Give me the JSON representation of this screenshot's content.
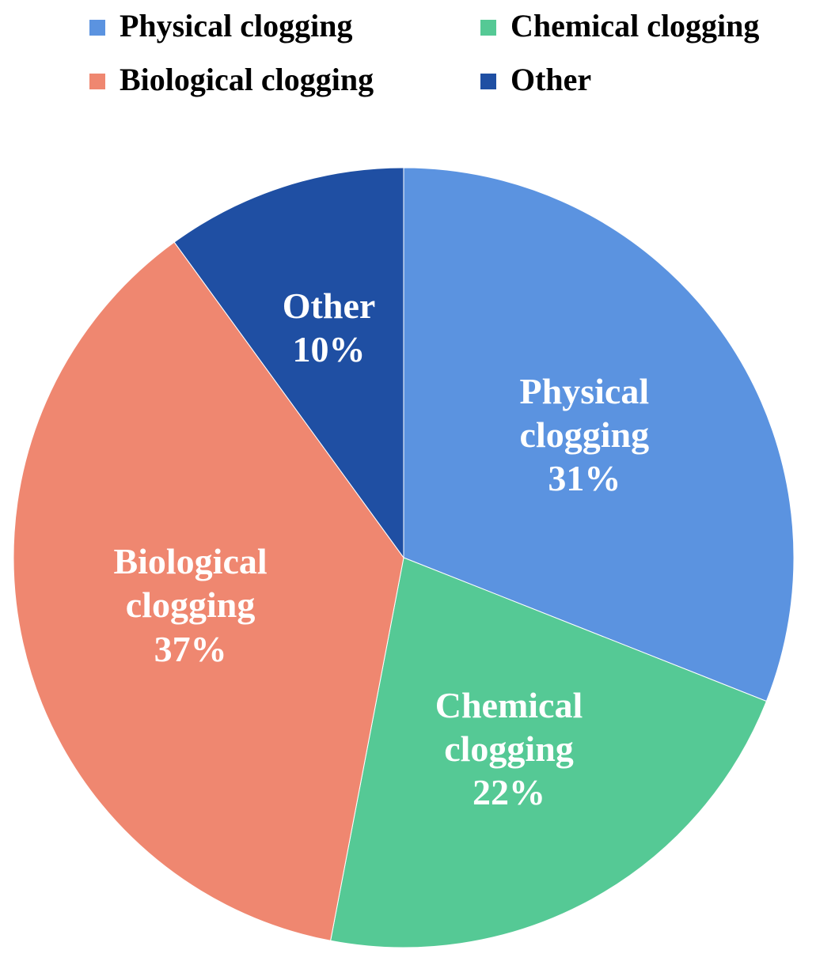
{
  "chart_data": {
    "type": "pie",
    "categories": [
      "Physical clogging",
      "Chemical clogging",
      "Biological clogging",
      "Other"
    ],
    "values": [
      31,
      22,
      37,
      10
    ],
    "value_labels": [
      "31%",
      "22%",
      "37%",
      "10%"
    ],
    "colors": [
      "#5b93e0",
      "#55c995",
      "#ef8770",
      "#1f4fa3"
    ],
    "legend": "top"
  }
}
